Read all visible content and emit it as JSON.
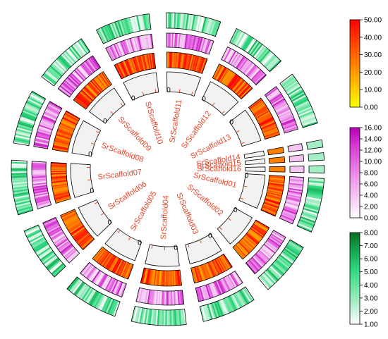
{
  "chart_data": {
    "type": "circos",
    "scaffolds": [
      {
        "name": "SrScaffold01",
        "size": 10
      },
      {
        "name": "SrScaffold02",
        "size": 10
      },
      {
        "name": "SrScaffold03",
        "size": 10
      },
      {
        "name": "SrScaffold04",
        "size": 10
      },
      {
        "name": "SrScaffold05",
        "size": 10
      },
      {
        "name": "SrScaffold06",
        "size": 10
      },
      {
        "name": "SrScaffold07",
        "size": 10
      },
      {
        "name": "SrScaffold08",
        "size": 10
      },
      {
        "name": "SrScaffold09",
        "size": 10
      },
      {
        "name": "SrScaffold10",
        "size": 10
      },
      {
        "name": "SrScaffold11",
        "size": 10
      },
      {
        "name": "SrScaffold12",
        "size": 10
      },
      {
        "name": "SrScaffold13",
        "size": 10
      },
      {
        "name": "SrScaffold14",
        "size": 1
      },
      {
        "name": "SrScaffold15",
        "size": 1
      },
      {
        "name": "SrScaffold16",
        "size": 1
      }
    ],
    "tick_label": "0",
    "tracks": [
      {
        "name": "",
        "colormap": [
          "#ffff00",
          "#ffcc00",
          "#ff9900",
          "#ff6600",
          "#ff3300",
          "#ff0000"
        ],
        "scale": {
          "min": 0,
          "max": 50,
          "ticks": [
            "0.00",
            "10.00",
            "20.00",
            "30.00",
            "40.00",
            "50.00"
          ]
        }
      },
      {
        "name": "",
        "colormap": [
          "#ffffff",
          "#f5d0f5",
          "#f0a0ee",
          "#e46ee0",
          "#d83ad3",
          "#b300b3"
        ],
        "scale": {
          "min": 0,
          "max": 16,
          "ticks": [
            "0.00",
            "2.00",
            "4.00",
            "6.00",
            "8.00",
            "10.00",
            "12.00",
            "14.00",
            "16.00"
          ]
        }
      },
      {
        "name": "",
        "colormap": [
          "#ffffff",
          "#b4f0cf",
          "#6fe6a4",
          "#2fd67f",
          "#17a850",
          "#0a6e22"
        ],
        "scale": {
          "min": 1,
          "max": 8,
          "ticks": [
            "1.00",
            "2.00",
            "3.00",
            "4.00",
            "5.00",
            "6.00",
            "7.00",
            "8.00"
          ]
        }
      }
    ]
  }
}
